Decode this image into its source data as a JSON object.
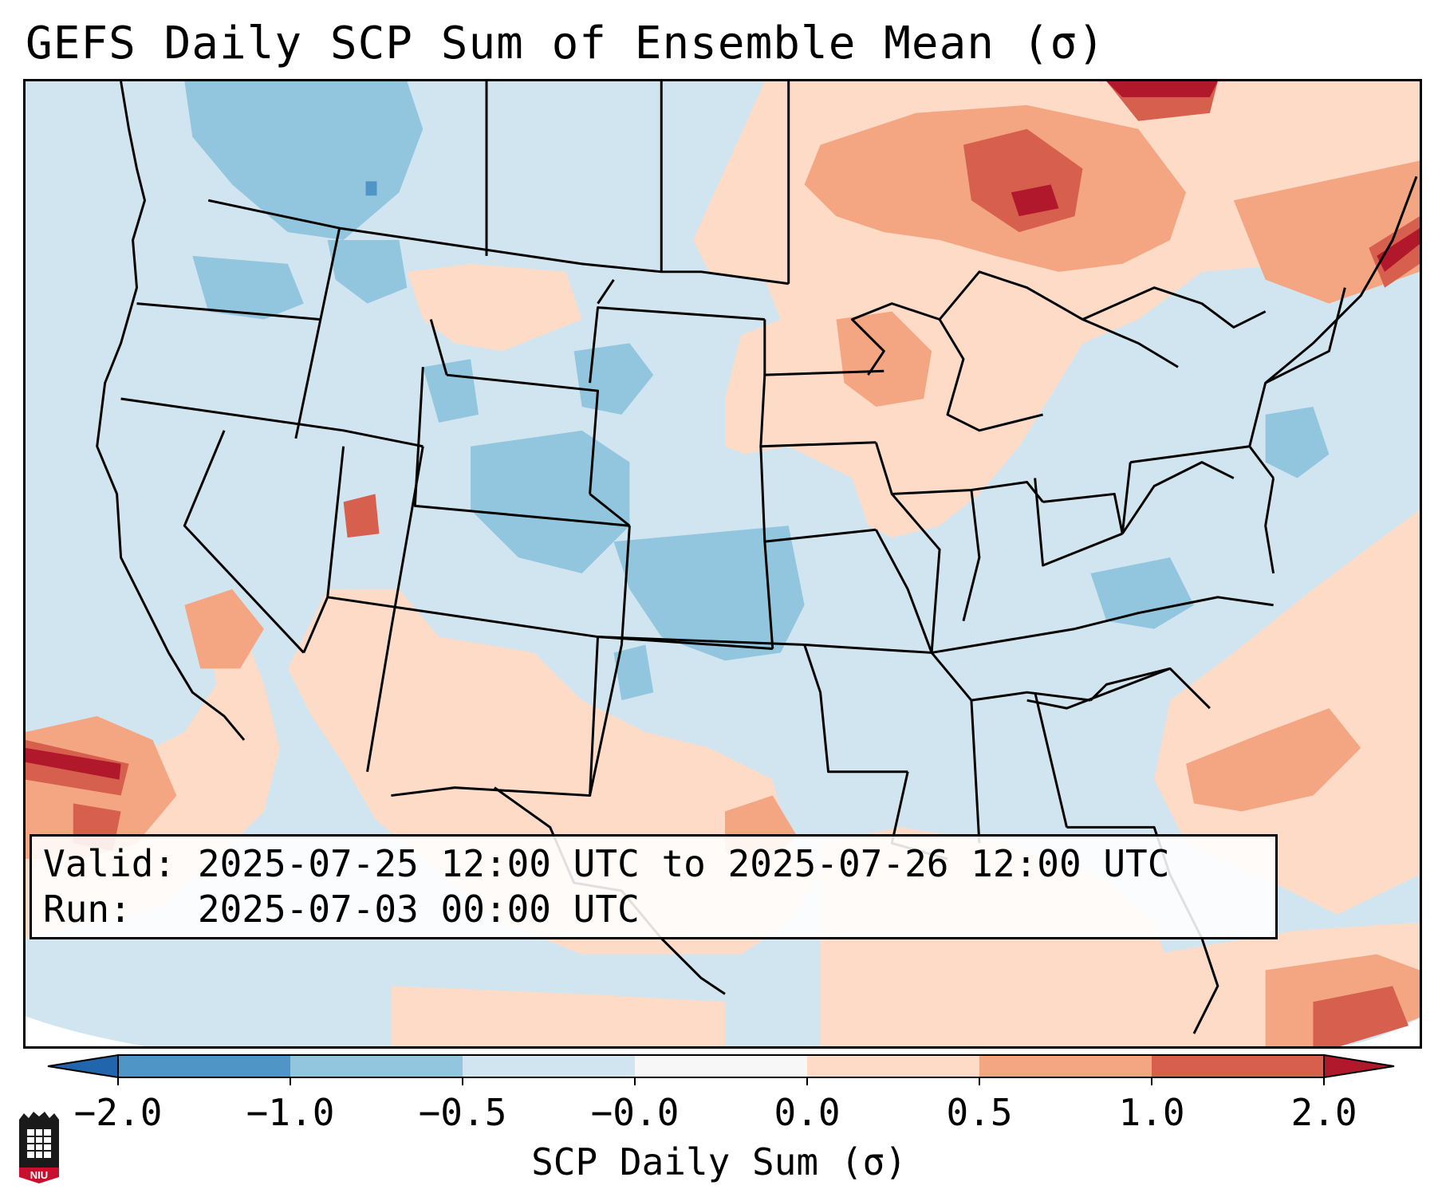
{
  "title": "GEFS Daily SCP Sum of Ensemble Mean (σ)",
  "valid_box": {
    "valid_label": "Valid:",
    "valid_value": "2025-07-25 12:00 UTC to 2025-07-26 12:00 UTC",
    "run_label": "Run:",
    "run_value": "2025-07-03 00:00 UTC"
  },
  "colorbar": {
    "label": "SCP Daily Sum (σ)",
    "ticks": [
      "−2.0",
      "−1.0",
      "−0.5",
      "−0.0",
      "0.0",
      "0.5",
      "1.0",
      "2.0"
    ],
    "bins": [
      {
        "range": "-2.0 to -1.0",
        "color": "#4f95c6"
      },
      {
        "range": "-1.0 to -0.5",
        "color": "#92c5de"
      },
      {
        "range": "-0.5 to -0.0",
        "color": "#d1e5f0"
      },
      {
        "range": "-0.0 to 0.0",
        "color": "#f7f7f7"
      },
      {
        "range": "0.0 to 0.5",
        "color": "#fddbc7"
      },
      {
        "range": "0.5 to 1.0",
        "color": "#f4a582"
      },
      {
        "range": "1.0 to 2.0",
        "color": "#d6604d"
      }
    ],
    "extend_low_color": "#2166ac",
    "extend_high_color": "#b2182b"
  },
  "logo": {
    "text": "NIU"
  },
  "map": {
    "region": "Contiguous United States",
    "background_color": "#d1e5f0"
  }
}
